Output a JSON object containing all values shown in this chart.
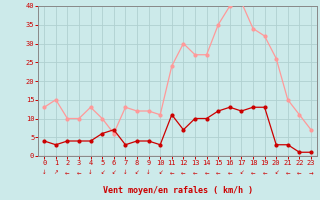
{
  "hours": [
    0,
    1,
    2,
    3,
    4,
    5,
    6,
    7,
    8,
    9,
    10,
    11,
    12,
    13,
    14,
    15,
    16,
    17,
    18,
    19,
    20,
    21,
    22,
    23
  ],
  "wind_avg": [
    4,
    3,
    4,
    4,
    4,
    6,
    7,
    3,
    4,
    4,
    3,
    11,
    7,
    10,
    10,
    12,
    13,
    12,
    13,
    13,
    3,
    3,
    1,
    1
  ],
  "wind_gust": [
    13,
    15,
    10,
    10,
    13,
    10,
    6,
    13,
    12,
    12,
    11,
    24,
    30,
    27,
    27,
    35,
    40,
    41,
    34,
    32,
    26,
    15,
    11,
    7
  ],
  "bg_color": "#cceaea",
  "grid_color": "#b0d0d0",
  "line_avg_color": "#cc0000",
  "line_gust_color": "#ff9999",
  "border_color": "#888888",
  "xlabel": "Vent moyen/en rafales ( km/h )",
  "xlabel_color": "#cc0000",
  "tick_color": "#cc0000",
  "ylim": [
    0,
    40
  ],
  "yticks": [
    0,
    5,
    10,
    15,
    20,
    25,
    30,
    35,
    40
  ],
  "arrow_symbols": [
    "↓",
    "↗",
    "←",
    "←",
    "↓",
    "↙",
    "↙",
    "↓",
    "↙",
    "↓",
    "↙",
    "←",
    "←",
    "←",
    "←",
    "←",
    "←",
    "↙",
    "←",
    "←",
    "↙",
    "←",
    "←",
    "→"
  ]
}
